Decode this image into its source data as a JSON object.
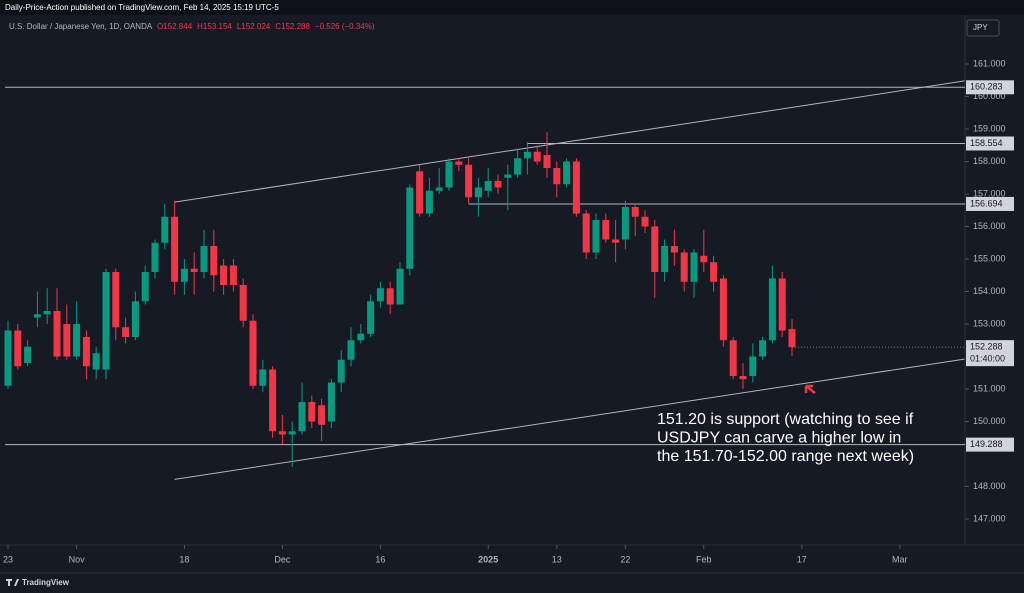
{
  "header": {
    "published": "Daily-Price-Action published on TradingView.com, Feb 14, 2025 15:19 UTC-5",
    "brand": "TradingView"
  },
  "chart_data": {
    "type": "candlestick",
    "title": "U.S. Dollar / Japanese Yen, 1D, OANDA",
    "ohlc_legend": [
      "O152.844",
      "H153.154",
      "L152.024",
      "C152.288",
      "−0.526 (−0.34%)"
    ],
    "currency": "JPY",
    "up_color": "#089981",
    "down_color": "#f23645",
    "open": [
      151.1,
      152.8,
      151.8,
      153.2,
      153.3,
      153.4,
      153.0,
      152.0,
      152.6,
      151.6,
      151.6,
      154.6,
      152.9,
      152.6,
      153.7,
      154.6,
      155.5,
      156.3,
      154.3,
      154.7,
      154.6,
      155.4,
      154.8,
      154.8,
      154.2,
      153.1,
      151.1,
      151.6,
      149.7,
      149.6,
      149.7,
      150.6,
      150.5,
      150.0,
      151.2,
      151.9,
      152.5,
      152.7,
      153.7,
      154.1,
      153.6,
      154.7,
      157.7,
      156.4,
      157.1,
      157.2,
      158.0,
      157.9,
      156.9,
      157.1,
      157.4,
      157.5,
      157.6,
      158.1,
      158.3,
      158.2,
      157.8,
      157.3,
      158.0,
      156.4,
      155.2,
      156.2,
      155.6,
      155.6,
      156.6,
      156.3,
      156.0,
      154.6,
      155.4,
      155.2,
      154.3,
      155.1,
      154.9,
      154.4,
      152.5,
      151.4,
      151.4,
      152.0,
      152.5,
      154.4,
      152.844
    ],
    "high": [
      153.1,
      153.0,
      152.5,
      154.0,
      154.1,
      154.1,
      153.6,
      153.7,
      152.8,
      152.3,
      154.7,
      154.7,
      153.2,
      154.0,
      154.8,
      155.6,
      156.7,
      156.8,
      155.0,
      155.2,
      155.9,
      155.9,
      155.0,
      155.0,
      154.4,
      153.3,
      151.9,
      151.7,
      150.2,
      150.0,
      151.2,
      150.8,
      150.7,
      151.3,
      152.2,
      152.9,
      153.0,
      153.9,
      154.3,
      154.3,
      154.9,
      157.3,
      157.9,
      157.5,
      157.8,
      158.1,
      158.1,
      158.1,
      157.5,
      157.8,
      157.6,
      157.9,
      158.4,
      158.6,
      158.5,
      158.9,
      158.0,
      158.1,
      158.1,
      156.5,
      156.4,
      156.4,
      156.2,
      156.8,
      156.7,
      156.5,
      156.2,
      155.6,
      155.9,
      155.3,
      155.3,
      155.9,
      155.1,
      154.5,
      152.6,
      151.8,
      152.4,
      152.6,
      154.8,
      154.6,
      153.154
    ],
    "low": [
      151.0,
      151.6,
      151.7,
      152.9,
      153.0,
      151.9,
      151.9,
      151.9,
      151.3,
      151.3,
      151.3,
      152.5,
      152.4,
      152.5,
      153.6,
      154.4,
      155.3,
      153.9,
      153.9,
      153.9,
      154.4,
      154.0,
      153.9,
      154.0,
      152.9,
      151.0,
      150.9,
      149.5,
      149.3,
      148.6,
      149.6,
      149.8,
      149.4,
      149.8,
      150.9,
      151.7,
      152.4,
      152.6,
      153.5,
      153.3,
      153.6,
      154.5,
      156.3,
      156.3,
      157.0,
      157.1,
      157.7,
      156.7,
      156.3,
      156.9,
      157.0,
      156.5,
      157.5,
      157.6,
      157.9,
      157.5,
      156.9,
      157.2,
      156.3,
      155.0,
      155.0,
      155.5,
      154.9,
      155.3,
      155.7,
      155.8,
      153.8,
      154.3,
      154.8,
      154.0,
      153.8,
      154.6,
      154.0,
      152.3,
      151.3,
      151.0,
      151.2,
      151.9,
      152.4,
      152.6,
      152.024
    ],
    "close": [
      152.8,
      151.7,
      152.3,
      153.3,
      153.4,
      152.0,
      152.0,
      153.0,
      151.7,
      152.1,
      154.6,
      152.9,
      152.6,
      153.7,
      154.6,
      155.5,
      156.3,
      154.3,
      154.7,
      154.6,
      155.4,
      154.5,
      154.2,
      154.2,
      153.1,
      151.1,
      151.6,
      149.7,
      149.6,
      149.7,
      150.6,
      150.0,
      149.9,
      151.2,
      151.9,
      152.5,
      152.7,
      153.7,
      154.1,
      153.6,
      154.7,
      157.2,
      156.4,
      157.1,
      157.2,
      158.0,
      157.9,
      156.9,
      157.2,
      157.4,
      157.2,
      157.6,
      158.1,
      158.3,
      158.0,
      157.8,
      157.3,
      158.0,
      156.4,
      155.2,
      156.2,
      155.6,
      155.5,
      156.6,
      156.3,
      156.0,
      154.6,
      155.4,
      155.2,
      154.3,
      155.2,
      154.9,
      154.3,
      152.5,
      151.4,
      151.3,
      152.0,
      152.5,
      154.4,
      152.8,
      152.288
    ],
    "xticks": [
      {
        "value": 0,
        "label": "23"
      },
      {
        "value": 7,
        "label": "Nov"
      },
      {
        "value": 18,
        "label": "18"
      },
      {
        "value": 28,
        "label": "Dec"
      },
      {
        "value": 38,
        "label": "16"
      },
      {
        "value": 49,
        "label": "2025"
      },
      {
        "value": 56,
        "label": "13"
      },
      {
        "value": 63,
        "label": "22"
      },
      {
        "value": 71,
        "label": "Feb"
      },
      {
        "value": 81,
        "label": "17"
      },
      {
        "value": 91,
        "label": "Mar"
      }
    ],
    "xlim": [
      0,
      97.6
    ],
    "ylim": [
      146.2,
      161.8
    ],
    "yticks": [
      {
        "value": 161,
        "label": "161.000"
      },
      {
        "value": 160,
        "label": "160.000"
      },
      {
        "value": 159,
        "label": "159.000"
      },
      {
        "value": 158,
        "label": "158.000"
      },
      {
        "value": 157,
        "label": "157.000"
      },
      {
        "value": 156,
        "label": "156.000"
      },
      {
        "value": 155,
        "label": "155.000"
      },
      {
        "value": 154,
        "label": "154.000"
      },
      {
        "value": 153,
        "label": "153.000"
      },
      {
        "value": 151,
        "label": "151.000"
      },
      {
        "value": 150,
        "label": "150.000"
      },
      {
        "value": 148,
        "label": "148.000"
      },
      {
        "value": 147,
        "label": "147.000"
      }
    ],
    "levels": [
      {
        "value": 160.283,
        "label": "160.283",
        "from": 0
      },
      {
        "value": 158.554,
        "label": "158.554",
        "from": 53
      },
      {
        "value": 156.694,
        "label": "156.694",
        "from": 47
      },
      {
        "value": 149.288,
        "label": "149.288",
        "from": 0
      }
    ],
    "last_price": {
      "value": 152.288,
      "label": "152.288",
      "countdown": "01:40:00"
    },
    "trendlines": [
      {
        "points": [
          [
            17,
            156.75
          ],
          [
            97.6,
            160.48
          ]
        ]
      },
      {
        "points": [
          [
            17,
            148.22
          ],
          [
            97.6,
            151.92
          ]
        ]
      }
    ],
    "annotation": [
      "151.20 is support (watching to see if",
      "USDJPY can carve a higher low in",
      "the 151.70-152.00 range next week)"
    ]
  }
}
